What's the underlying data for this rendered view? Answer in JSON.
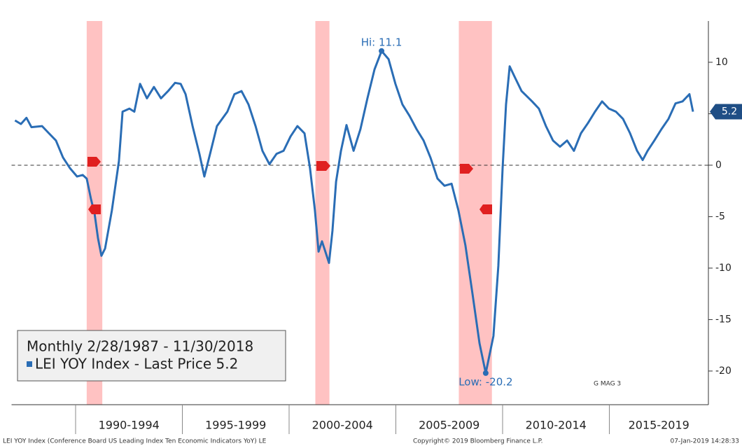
{
  "chart_data": {
    "type": "line",
    "legend_title": "Monthly 2/28/1987 - 11/30/2018",
    "footer_left": "LEI YOY Index (Conference Board US Leading Index Ten Economic Indicators YoY) LE",
    "footer_center": "Copyright© 2019 Bloomberg Finance L.P.",
    "footer_right": "07-Jan-2019 14:28:33",
    "watermark": "G MAG 3",
    "xlim": [
      1987.0,
      2019.64
    ],
    "xticks": [
      1990,
      1995,
      2000,
      2005,
      2010,
      2015
    ],
    "periods": [
      {
        "label": "1990-1994",
        "start": 1990,
        "end": 1995
      },
      {
        "label": "1995-1999",
        "start": 1995,
        "end": 2000
      },
      {
        "label": "2000-2004",
        "start": 2000,
        "end": 2005
      },
      {
        "label": "2005-2009",
        "start": 2005,
        "end": 2010
      },
      {
        "label": "2010-2014",
        "start": 2010,
        "end": 2015
      },
      {
        "label": "2015-2019",
        "start": 2015,
        "end": 2020
      }
    ],
    "ylim": [
      -23.27,
      14.01
    ],
    "yticks": [
      -20,
      -15,
      -10,
      -5,
      0,
      5,
      10
    ],
    "reference_line": 0,
    "recessions": [
      [
        1990.52,
        1991.25
      ],
      [
        2001.23,
        2001.89
      ],
      [
        2007.95,
        2009.5
      ]
    ],
    "recession_color": "#ffb3b3",
    "last_price": 5.2,
    "annotations": [
      {
        "text": "Hi: 11.1",
        "x": 2004.33,
        "y": 11.1
      },
      {
        "text": "Low: -20.2",
        "x": 2009.21,
        "y": -20.2
      }
    ],
    "series": [
      {
        "name": "LEI YOY Index - Last Price 5.2",
        "color": "#2a6db5",
        "x": [
          1987.16,
          1987.44,
          1987.7,
          1987.93,
          1988.43,
          1988.75,
          1989.08,
          1989.41,
          1989.74,
          1990.07,
          1990.33,
          1990.52,
          1990.72,
          1990.89,
          1991.05,
          1991.21,
          1991.38,
          1991.7,
          1992.03,
          1992.2,
          1992.52,
          1992.75,
          1993.02,
          1993.34,
          1993.67,
          1994.0,
          1994.33,
          1994.66,
          1994.92,
          1995.15,
          1995.48,
          1995.8,
          1996.03,
          1996.3,
          1996.62,
          1997.11,
          1997.44,
          1997.77,
          1998.1,
          1998.43,
          1998.75,
          1999.08,
          1999.41,
          1999.74,
          2000.07,
          2000.39,
          2000.72,
          2000.98,
          2001.21,
          2001.38,
          2001.54,
          2001.7,
          2001.87,
          2002.03,
          2002.2,
          2002.43,
          2002.69,
          2003.02,
          2003.34,
          2003.67,
          2004.0,
          2004.33,
          2004.66,
          2004.98,
          2005.31,
          2005.64,
          2005.97,
          2006.3,
          2006.62,
          2006.95,
          2007.28,
          2007.61,
          2007.93,
          2008.26,
          2008.59,
          2008.92,
          2009.21,
          2009.57,
          2009.8,
          2010.0,
          2010.16,
          2010.33,
          2010.56,
          2010.89,
          2011.38,
          2011.7,
          2012.03,
          2012.36,
          2012.69,
          2013.02,
          2013.34,
          2013.67,
          2014.0,
          2014.33,
          2014.66,
          2014.98,
          2015.31,
          2015.64,
          2015.97,
          2016.3,
          2016.56,
          2016.79,
          2017.11,
          2017.44,
          2017.77,
          2018.1,
          2018.43,
          2018.75,
          2018.92
        ],
        "values": [
          4.35,
          4.0,
          4.6,
          3.7,
          3.8,
          3.1,
          2.4,
          0.75,
          -0.3,
          -1.1,
          -0.95,
          -1.3,
          -3.3,
          -4.7,
          -7.1,
          -8.8,
          -8.1,
          -4.4,
          0.4,
          5.2,
          5.5,
          5.2,
          7.9,
          6.5,
          7.6,
          6.5,
          7.2,
          8.0,
          7.9,
          6.9,
          3.8,
          1.1,
          -1.1,
          1.1,
          3.8,
          5.2,
          6.9,
          7.2,
          5.9,
          3.8,
          1.4,
          0.1,
          1.1,
          1.4,
          2.8,
          3.8,
          3.1,
          -0.3,
          -4.4,
          -8.4,
          -7.4,
          -8.4,
          -9.5,
          -6.4,
          -1.6,
          1.4,
          3.9,
          1.4,
          3.5,
          6.5,
          9.3,
          11.1,
          10.3,
          7.9,
          5.9,
          4.8,
          3.5,
          2.4,
          0.75,
          -1.3,
          -2.0,
          -1.8,
          -4.4,
          -7.8,
          -12.5,
          -17.3,
          -20.2,
          -16.6,
          -9.8,
          -0.3,
          5.9,
          9.6,
          8.6,
          7.2,
          6.2,
          5.5,
          3.8,
          2.4,
          1.8,
          2.4,
          1.4,
          3.1,
          4.1,
          5.2,
          6.2,
          5.5,
          5.2,
          4.5,
          3.1,
          1.4,
          0.5,
          1.4,
          2.4,
          3.5,
          4.5,
          6.0,
          6.2,
          6.9,
          5.2
        ]
      }
    ]
  }
}
